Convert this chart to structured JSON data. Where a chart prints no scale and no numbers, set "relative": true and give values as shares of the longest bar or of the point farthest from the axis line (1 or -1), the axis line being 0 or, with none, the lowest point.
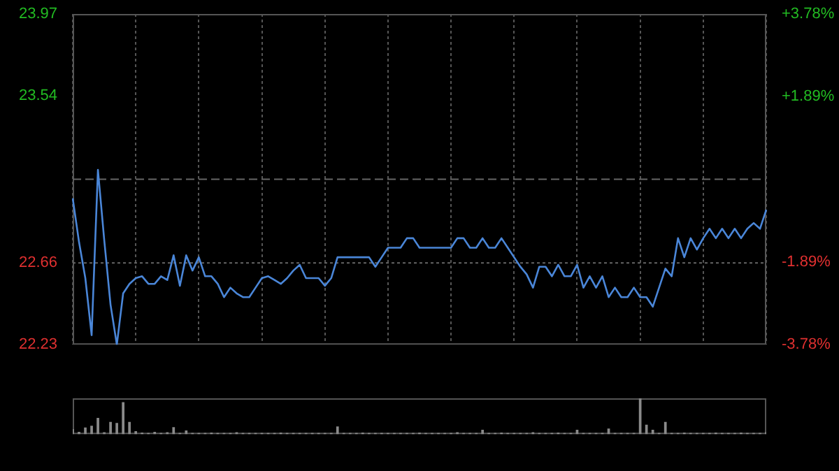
{
  "chart_data": [
    {
      "type": "line",
      "color": "#4a86d8",
      "line_style": "solid",
      "marker": "none",
      "legend": false,
      "grid": "x",
      "categories": [
        null,
        null,
        null,
        null,
        null,
        null,
        null,
        null,
        null,
        null,
        null,
        null,
        null,
        null,
        null,
        null,
        null,
        null,
        null,
        null,
        null,
        null,
        null,
        null,
        null,
        null,
        null,
        null,
        null,
        null,
        null,
        null,
        null,
        null,
        null,
        null,
        null,
        null,
        null,
        null,
        null,
        null,
        null,
        null,
        null,
        null,
        null,
        null,
        null,
        null,
        null,
        null,
        null,
        null,
        null,
        null,
        null,
        null,
        null,
        null,
        null,
        null,
        null,
        null,
        null,
        null,
        null,
        null,
        null,
        null,
        null,
        null,
        null,
        null,
        null,
        null,
        null,
        null,
        null,
        null,
        null,
        null,
        null,
        null,
        null,
        null,
        null,
        null,
        null,
        null,
        null,
        null,
        null,
        null,
        null,
        null,
        null,
        null,
        null,
        null,
        null,
        null,
        null,
        null,
        null,
        null,
        null,
        null,
        null,
        null,
        null
      ],
      "values": [
        23.0,
        22.77,
        22.58,
        22.28,
        23.15,
        22.78,
        22.44,
        22.23,
        22.5,
        22.55,
        22.58,
        22.59,
        22.55,
        22.55,
        22.59,
        22.57,
        22.7,
        22.54,
        22.7,
        22.62,
        22.69,
        22.59,
        22.59,
        22.55,
        22.48,
        22.53,
        22.5,
        22.48,
        22.48,
        22.53,
        22.58,
        22.59,
        22.57,
        22.55,
        22.58,
        22.62,
        22.65,
        22.58,
        22.58,
        22.58,
        22.54,
        22.58,
        22.69,
        22.69,
        22.69,
        22.69,
        22.69,
        22.69,
        22.64,
        22.69,
        22.74,
        22.74,
        22.74,
        22.79,
        22.79,
        22.74,
        22.74,
        22.74,
        22.74,
        22.74,
        22.74,
        22.79,
        22.79,
        22.74,
        22.74,
        22.79,
        22.74,
        22.74,
        22.79,
        22.74,
        22.69,
        22.64,
        22.6,
        22.53,
        22.64,
        22.64,
        22.59,
        22.65,
        22.59,
        22.59,
        22.65,
        22.53,
        22.59,
        22.53,
        22.59,
        22.48,
        22.53,
        22.48,
        22.48,
        22.53,
        22.48,
        22.48,
        22.43,
        22.53,
        22.63,
        22.59,
        22.79,
        22.69,
        22.79,
        22.73,
        22.79,
        22.84,
        22.79,
        22.84,
        22.79,
        22.84,
        22.79,
        22.84,
        22.87,
        22.84,
        22.94
      ],
      "ylim": [
        22.23,
        23.97
      ],
      "yticks": [
        22.23,
        22.66,
        23.54,
        23.97
      ],
      "y2lim": [
        -3.78,
        3.78
      ],
      "y2ticks": [
        {
          "value": -3.78,
          "label": "-3.78%"
        },
        {
          "value": -1.89,
          "label": "-1.89%"
        },
        {
          "value": 1.89,
          "label": "+1.89%"
        },
        {
          "value": 3.78,
          "label": "+3.78%"
        }
      ],
      "ref_lines": [
        {
          "axis": "y",
          "value": 23.1,
          "line_style": "dashed",
          "color": "#666666"
        },
        {
          "axis": "y",
          "value": 22.66,
          "line_style": "dotted",
          "color": "#666666"
        }
      ]
    },
    {
      "type": "bar",
      "relative": true,
      "color": "#8a8a8a",
      "legend": false,
      "categories": [
        null,
        null,
        null,
        null,
        null,
        null,
        null,
        null,
        null,
        null,
        null,
        null,
        null,
        null,
        null,
        null,
        null,
        null,
        null,
        null,
        null,
        null,
        null,
        null,
        null,
        null,
        null,
        null,
        null,
        null,
        null,
        null,
        null,
        null,
        null,
        null,
        null,
        null,
        null,
        null,
        null,
        null,
        null,
        null,
        null,
        null,
        null,
        null,
        null,
        null,
        null,
        null,
        null,
        null,
        null,
        null,
        null,
        null,
        null,
        null,
        null,
        null,
        null,
        null,
        null,
        null,
        null,
        null,
        null,
        null,
        null,
        null,
        null,
        null,
        null,
        null,
        null,
        null,
        null,
        null,
        null,
        null,
        null,
        null,
        null,
        null,
        null,
        null,
        null,
        null,
        null,
        null,
        null,
        null,
        null,
        null,
        null,
        null,
        null,
        null,
        null,
        null,
        null,
        null,
        null,
        null,
        null,
        null,
        null,
        null,
        null
      ],
      "values": [
        0.13,
        0.05,
        0.17,
        0.22,
        0.44,
        0.04,
        0.33,
        0.3,
        0.88,
        0.33,
        0.07,
        0.03,
        0.02,
        0.05,
        0.02,
        0.04,
        0.18,
        0.02,
        0.09,
        0.02,
        0.02,
        0.02,
        0.03,
        0.02,
        0.02,
        0.02,
        0.04,
        0.02,
        0.02,
        0.02,
        0.02,
        0.02,
        0.02,
        0.03,
        0.02,
        0.02,
        0.02,
        0.02,
        0.02,
        0.02,
        0.02,
        0.02,
        0.2,
        0.02,
        0.02,
        0.02,
        0.03,
        0.02,
        0.02,
        0.02,
        0.02,
        0.02,
        0.02,
        0.02,
        0.02,
        0.03,
        0.02,
        0.02,
        0.02,
        0.02,
        0.02,
        0.04,
        0.02,
        0.02,
        0.02,
        0.11,
        0.02,
        0.02,
        0.03,
        0.02,
        0.02,
        0.02,
        0.02,
        0.04,
        0.02,
        0.02,
        0.02,
        0.03,
        0.02,
        0.02,
        0.11,
        0.02,
        0.02,
        0.02,
        0.02,
        0.14,
        0.02,
        0.02,
        0.02,
        0.02,
        1,
        0.25,
        0.11,
        0.02,
        0.33,
        0.02,
        0.02,
        0.03,
        0.02,
        0.02,
        0.02,
        0.02,
        0.03,
        0.02,
        0.02,
        0.02,
        0.03,
        0.02,
        0.02,
        0.02,
        0.04
      ]
    }
  ]
}
